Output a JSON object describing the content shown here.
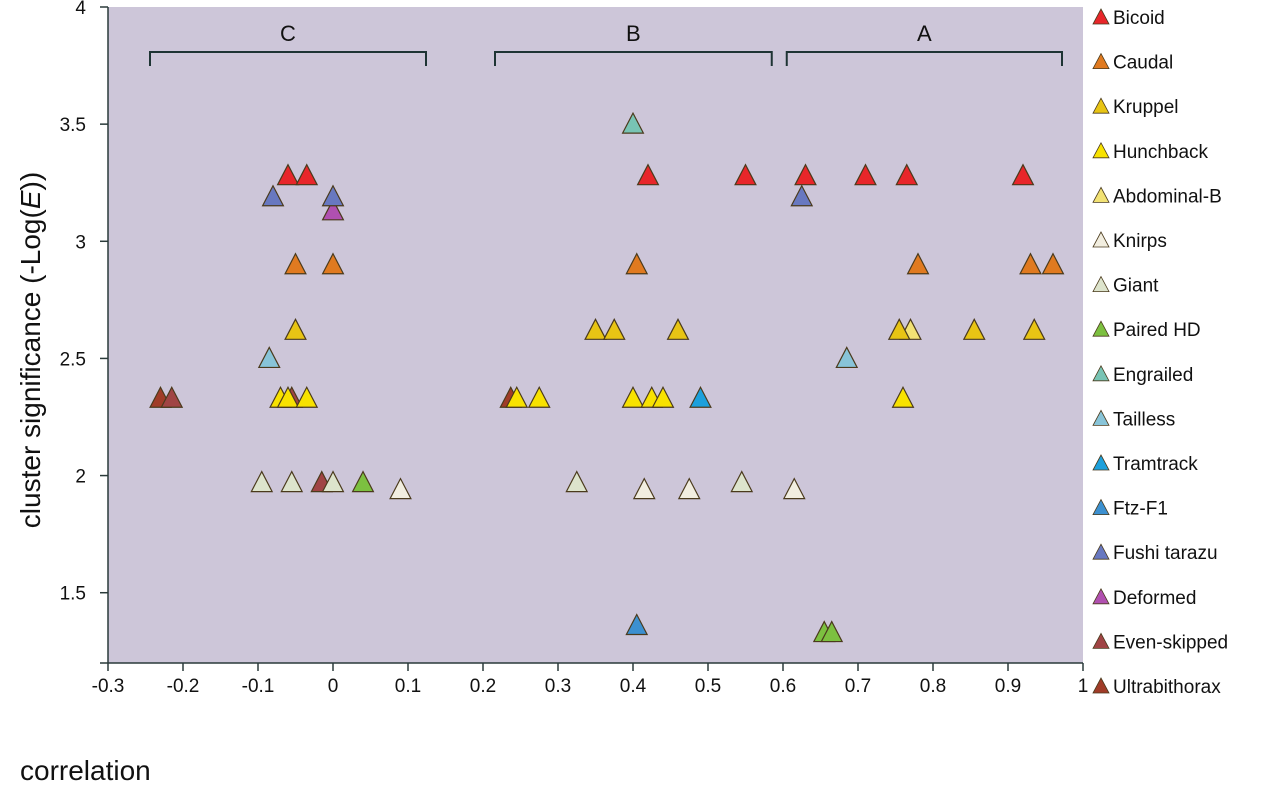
{
  "chart_data": {
    "type": "scatter",
    "title": "",
    "xlabel": "correlation",
    "ylabel_prefix": "cluster significance (-Log(",
    "ylabel_italic": "E",
    "ylabel_suffix": "))",
    "xlim": [
      -0.3,
      1.0
    ],
    "ylim": [
      1.2,
      4.0
    ],
    "xticks": [
      "-0.3",
      "-0.2",
      "-0.1",
      "0",
      "0.1",
      "0.2",
      "0.3",
      "0.4",
      "0.5",
      "0.6",
      "0.7",
      "0.8",
      "0.9",
      "1"
    ],
    "yticks": [
      "1.5",
      "2",
      "2.5",
      "3",
      "3.5",
      "4"
    ],
    "grid": false,
    "legend_position": "right",
    "marker": "triangle",
    "plot_background": "#cdc6d9",
    "brackets": [
      {
        "label": "C",
        "x_range": [
          -0.244,
          0.124
        ]
      },
      {
        "label": "B",
        "x_range": [
          0.216,
          0.585
        ]
      },
      {
        "label": "A",
        "x_range": [
          0.605,
          0.972
        ]
      }
    ],
    "series": [
      {
        "name": "Bicoid",
        "color": "#e8262a",
        "points": [
          [
            -0.06,
            3.28
          ],
          [
            -0.035,
            3.28
          ],
          [
            0.42,
            3.28
          ],
          [
            0.55,
            3.28
          ],
          [
            0.63,
            3.28
          ],
          [
            0.71,
            3.28
          ],
          [
            0.765,
            3.28
          ],
          [
            0.92,
            3.28
          ]
        ]
      },
      {
        "name": "Caudal",
        "color": "#e07a20",
        "points": [
          [
            -0.05,
            2.9
          ],
          [
            0,
            2.9
          ],
          [
            0.405,
            2.9
          ],
          [
            0.78,
            2.9
          ],
          [
            0.93,
            2.9
          ],
          [
            0.96,
            2.9
          ]
        ]
      },
      {
        "name": "Kruppel",
        "color": "#e8c414",
        "points": [
          [
            -0.05,
            2.62
          ],
          [
            0.35,
            2.62
          ],
          [
            0.375,
            2.62
          ],
          [
            0.46,
            2.62
          ],
          [
            0.755,
            2.62
          ],
          [
            0.855,
            2.62
          ],
          [
            0.935,
            2.62
          ]
        ]
      },
      {
        "name": "Hunchback",
        "color": "#f8e200",
        "points": [
          [
            -0.07,
            2.33
          ],
          [
            -0.06,
            2.33
          ],
          [
            -0.035,
            2.33
          ],
          [
            0.245,
            2.33
          ],
          [
            0.275,
            2.33
          ],
          [
            0.4,
            2.33
          ],
          [
            0.425,
            2.33
          ],
          [
            0.44,
            2.33
          ],
          [
            0.76,
            2.33
          ]
        ]
      },
      {
        "name": "Abdominal-B",
        "color": "#f2e274",
        "points": [
          [
            0.77,
            2.62
          ]
        ]
      },
      {
        "name": "Knirps",
        "color": "#f2eee0",
        "points": [
          [
            0.09,
            1.94
          ],
          [
            0.415,
            1.94
          ],
          [
            0.475,
            1.94
          ],
          [
            0.615,
            1.94
          ]
        ]
      },
      {
        "name": "Giant",
        "color": "#dde4cc",
        "points": [
          [
            -0.095,
            1.97
          ],
          [
            -0.055,
            1.97
          ],
          [
            0,
            1.97
          ],
          [
            0.325,
            1.97
          ],
          [
            0.545,
            1.97
          ]
        ]
      },
      {
        "name": "Paired HD",
        "color": "#7cc040",
        "points": [
          [
            0.04,
            1.97
          ],
          [
            0.655,
            1.33
          ],
          [
            0.665,
            1.33
          ]
        ]
      },
      {
        "name": "Engrailed",
        "color": "#78c4b4",
        "points": [
          [
            0.4,
            3.5
          ]
        ]
      },
      {
        "name": "Tailless",
        "color": "#88c4d8",
        "points": [
          [
            -0.085,
            2.5
          ],
          [
            0.685,
            2.5
          ]
        ]
      },
      {
        "name": "Tramtrack",
        "color": "#1ca0dc",
        "points": [
          [
            0.49,
            2.33
          ]
        ]
      },
      {
        "name": "Ftz-F1",
        "color": "#3c90d0",
        "points": [
          [
            0.405,
            1.36
          ]
        ]
      },
      {
        "name": "Fushi tarazu",
        "color": "#6878c0",
        "points": [
          [
            -0.08,
            3.19
          ],
          [
            0,
            3.19
          ],
          [
            0.625,
            3.19
          ]
        ]
      },
      {
        "name": "Deformed",
        "color": "#b050b0",
        "points": [
          [
            0,
            3.13
          ]
        ]
      },
      {
        "name": "Even-skipped",
        "color": "#a04444",
        "points": [
          [
            -0.215,
            2.33
          ],
          [
            -0.055,
            2.33
          ],
          [
            -0.015,
            1.97
          ]
        ]
      },
      {
        "name": "Ultrabithorax",
        "color": "#a03c28",
        "points": [
          [
            -0.23,
            2.33
          ],
          [
            0.237,
            2.33
          ]
        ]
      }
    ]
  }
}
